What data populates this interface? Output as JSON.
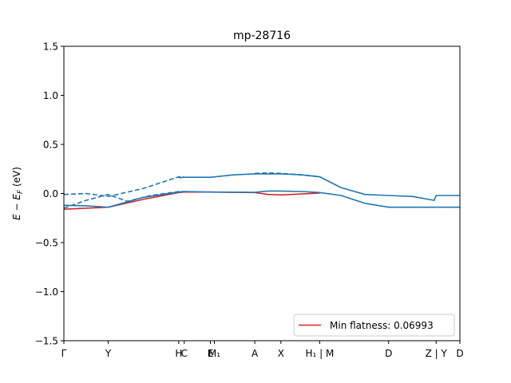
{
  "chart_data": {
    "type": "line",
    "title": "mp-28716",
    "ylabel": "E − E_F (eV)",
    "xlabel": "",
    "ylim": [
      -1.5,
      1.5
    ],
    "xlim": [
      0,
      1
    ],
    "yticks": [
      -1.5,
      -1.0,
      -0.5,
      0.0,
      0.5,
      1.0,
      1.5
    ],
    "ytick_labels": [
      "−1.5",
      "−1.0",
      "−0.5",
      "0.0",
      "0.5",
      "1.0",
      "1.5"
    ],
    "xticks": [
      {
        "x": 0.0,
        "label": "Γ"
      },
      {
        "x": 0.112,
        "label": "Y"
      },
      {
        "x": 0.29,
        "label": "H"
      },
      {
        "x": 0.304,
        "label": "C"
      },
      {
        "x": 0.37,
        "label": "E"
      },
      {
        "x": 0.38,
        "label": "M₁"
      },
      {
        "x": 0.482,
        "label": "A"
      },
      {
        "x": 0.548,
        "label": "X"
      },
      {
        "x": 0.646,
        "label": "H₁ | M"
      },
      {
        "x": 0.82,
        "label": "D"
      },
      {
        "x": 0.94,
        "label": "Z | Y"
      },
      {
        "x": 1.0,
        "label": "D"
      }
    ],
    "grid": false,
    "legend": {
      "placement": "lower-right",
      "entries": [
        "Min flatness: 0.06993"
      ]
    },
    "colors": {
      "highlight": "#d62728",
      "bands": "#1f77b4"
    },
    "series": [
      {
        "name": "Min flatness: 0.06993",
        "style": "solid",
        "color": "#d62728",
        "x": [
          0.0,
          0.056,
          0.112,
          0.2,
          0.29,
          0.304,
          0.37,
          0.482,
          0.515,
          0.548,
          0.6,
          0.646
        ],
        "y": [
          -0.16,
          -0.15,
          -0.14,
          -0.06,
          0.01,
          0.015,
          0.015,
          0.01,
          -0.01,
          -0.015,
          -0.005,
          0.005
        ]
      },
      {
        "style": "solid",
        "color": "#1f77b4",
        "x": [
          0.0,
          0.056,
          0.112,
          0.2,
          0.29,
          0.304,
          0.37,
          0.482,
          0.515,
          0.548,
          0.6,
          0.646,
          0.7,
          0.76,
          0.82,
          0.94,
          1.0
        ],
        "y": [
          -0.12,
          -0.125,
          -0.14,
          -0.04,
          0.015,
          0.02,
          0.015,
          0.012,
          0.025,
          0.025,
          0.02,
          0.01,
          -0.02,
          -0.1,
          -0.14,
          -0.14,
          -0.14
        ]
      },
      {
        "style": "solid",
        "color": "#1f77b4",
        "x": [
          0.29,
          0.304,
          0.37,
          0.43,
          0.482,
          0.548,
          0.6,
          0.646,
          0.7,
          0.76,
          0.82,
          0.88,
          0.935,
          0.94,
          1.0
        ],
        "y": [
          0.16,
          0.165,
          0.165,
          0.19,
          0.2,
          0.2,
          0.19,
          0.17,
          0.06,
          -0.01,
          -0.02,
          -0.03,
          -0.07,
          -0.02,
          -0.02
        ]
      },
      {
        "style": "dashed",
        "color": "#1f77b4",
        "x": [
          0.0,
          0.056,
          0.112,
          0.2,
          0.29,
          0.304
        ],
        "y": [
          -0.01,
          0.0,
          -0.03,
          0.05,
          0.17,
          0.17
        ]
      },
      {
        "style": "dashed",
        "color": "#1f77b4",
        "x": [
          0.0,
          0.056,
          0.112,
          0.16,
          0.22,
          0.29,
          0.304
        ],
        "y": [
          -0.15,
          -0.07,
          -0.01,
          -0.08,
          -0.02,
          0.02,
          0.02
        ]
      },
      {
        "style": "dashed",
        "color": "#1f77b4",
        "x": [
          0.482,
          0.515,
          0.548,
          0.6,
          0.646
        ],
        "y": [
          0.205,
          0.21,
          0.205,
          0.19,
          0.17
        ]
      }
    ]
  }
}
